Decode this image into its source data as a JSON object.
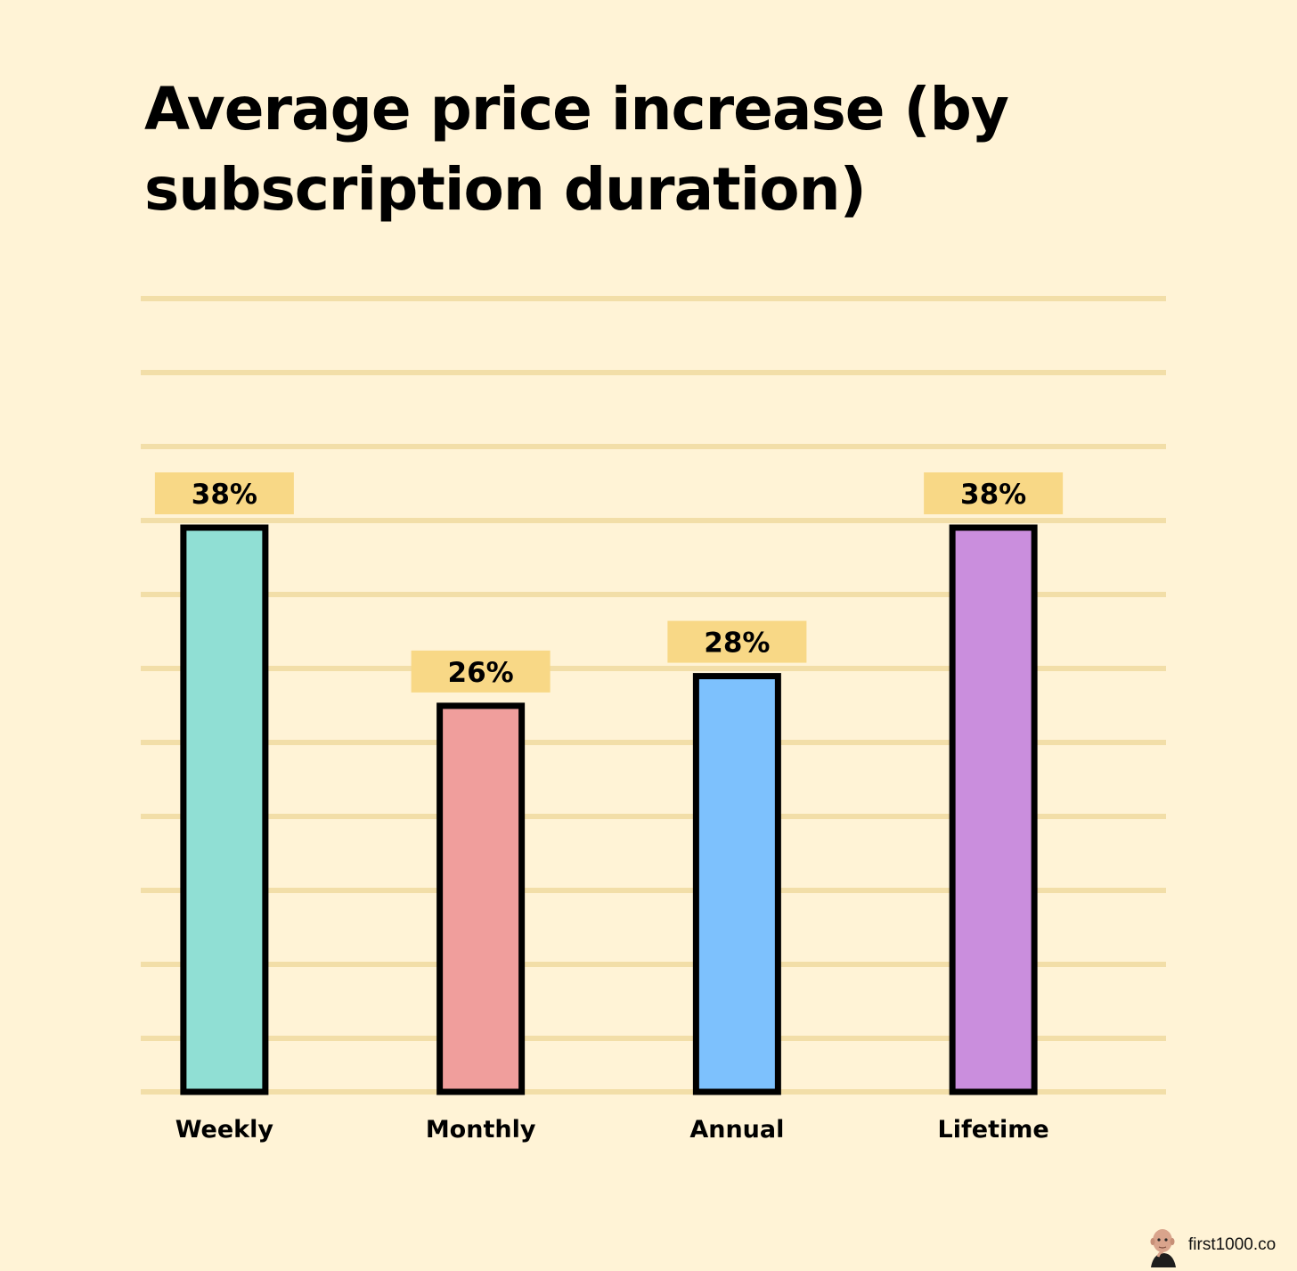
{
  "chart_data": {
    "type": "bar",
    "title": "Average price increase (by subscription duration)",
    "categories": [
      "Weekly",
      "Monthly",
      "Annual",
      "Lifetime"
    ],
    "values": [
      38,
      26,
      28,
      38
    ],
    "value_labels": [
      "38%",
      "26%",
      "28%",
      "38%"
    ],
    "unit": "%",
    "colors": [
      "#90DFD4",
      "#F09E9C",
      "#7DC1FD",
      "#CA8EDD"
    ],
    "label_box_color": "#F8D886",
    "gridline_color": "#F2DEA8",
    "grid": true,
    "ylim": [
      0,
      38
    ]
  },
  "footer": {
    "brand": "first1000.co"
  }
}
